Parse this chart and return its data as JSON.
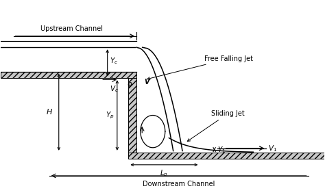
{
  "bg_color": "#ffffff",
  "line_color": "#000000",
  "upstream_channel_label": "Upstream Channel",
  "downstream_channel_label": "Downstream Channel",
  "free_falling_jet_label": "Free Falling Jet",
  "sliding_jet_label": "Sliding Jet",
  "xlim": [
    0,
    10
  ],
  "ylim": [
    0,
    6
  ],
  "upstream_floor_y": 3.8,
  "step_x": 4.2,
  "downstream_floor_y": 1.3,
  "wall_thickness": 0.25,
  "floor_thickness": 0.2,
  "water_surface_y": 4.55,
  "upstream_channel_top_y": 4.75
}
